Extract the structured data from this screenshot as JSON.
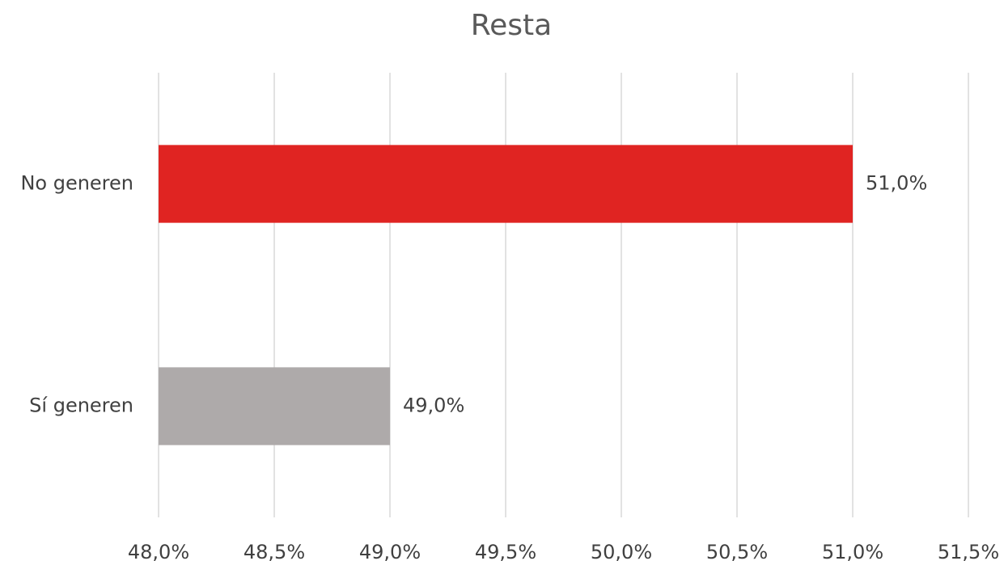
{
  "chart_data": {
    "type": "hbar",
    "title": "Resta",
    "categories": [
      "No generen",
      "Sí generen"
    ],
    "values": [
      51.0,
      49.0
    ],
    "value_labels": [
      "51,0%",
      "49,0%"
    ],
    "colors": [
      "#e02422",
      "#aeaaaa"
    ],
    "xlim": [
      48,
      51.5
    ],
    "xticks": [
      {
        "value": 48,
        "label": "48,0%"
      },
      {
        "value": 48.5,
        "label": "48,5%"
      },
      {
        "value": 49,
        "label": "49,0%"
      },
      {
        "value": 49.5,
        "label": "49,5%"
      },
      {
        "value": 50,
        "label": "50,0%"
      },
      {
        "value": 50.5,
        "label": "50,5%"
      },
      {
        "value": 51,
        "label": "51,0%"
      },
      {
        "value": 51.5,
        "label": "51,5%"
      }
    ],
    "grid": true
  }
}
